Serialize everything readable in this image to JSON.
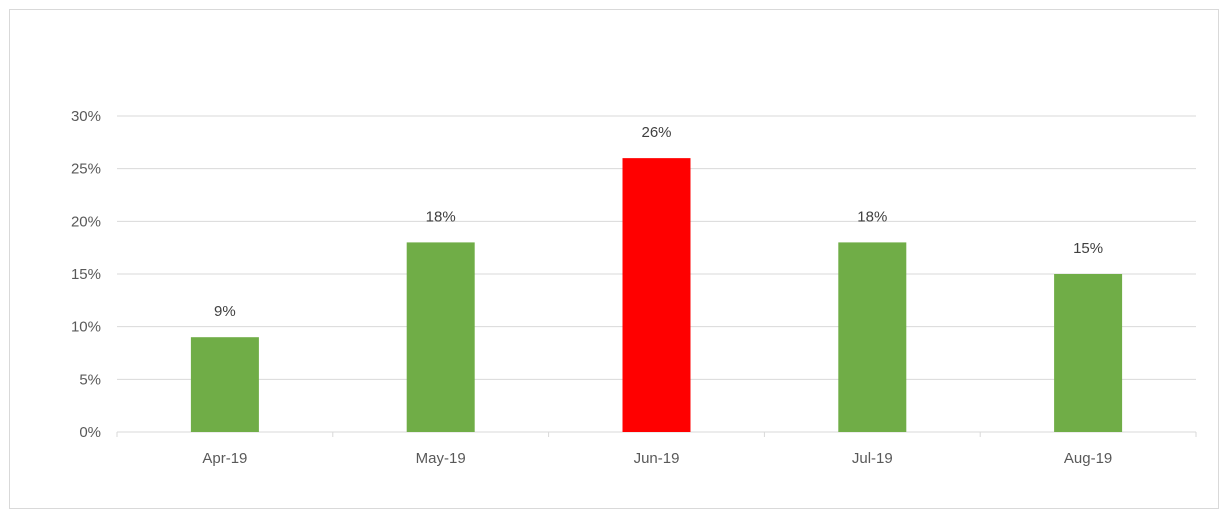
{
  "chart_data": {
    "type": "bar",
    "categories": [
      "Apr-19",
      "May-19",
      "Jun-19",
      "Jul-19",
      "Aug-19"
    ],
    "values": [
      9,
      18,
      26,
      18,
      15
    ],
    "data_labels": [
      "9%",
      "18%",
      "26%",
      "18%",
      "15%"
    ],
    "bar_colors": [
      "#70ad47",
      "#70ad47",
      "#ff0000",
      "#70ad47",
      "#70ad47"
    ],
    "title": "",
    "xlabel": "",
    "ylabel": "",
    "ylim": [
      0,
      30
    ],
    "yticks": [
      0,
      5,
      10,
      15,
      20,
      25,
      30
    ],
    "ytick_labels": [
      "0%",
      "5%",
      "10%",
      "15%",
      "20%",
      "25%",
      "30%"
    ],
    "grid": true,
    "legend": "none"
  }
}
